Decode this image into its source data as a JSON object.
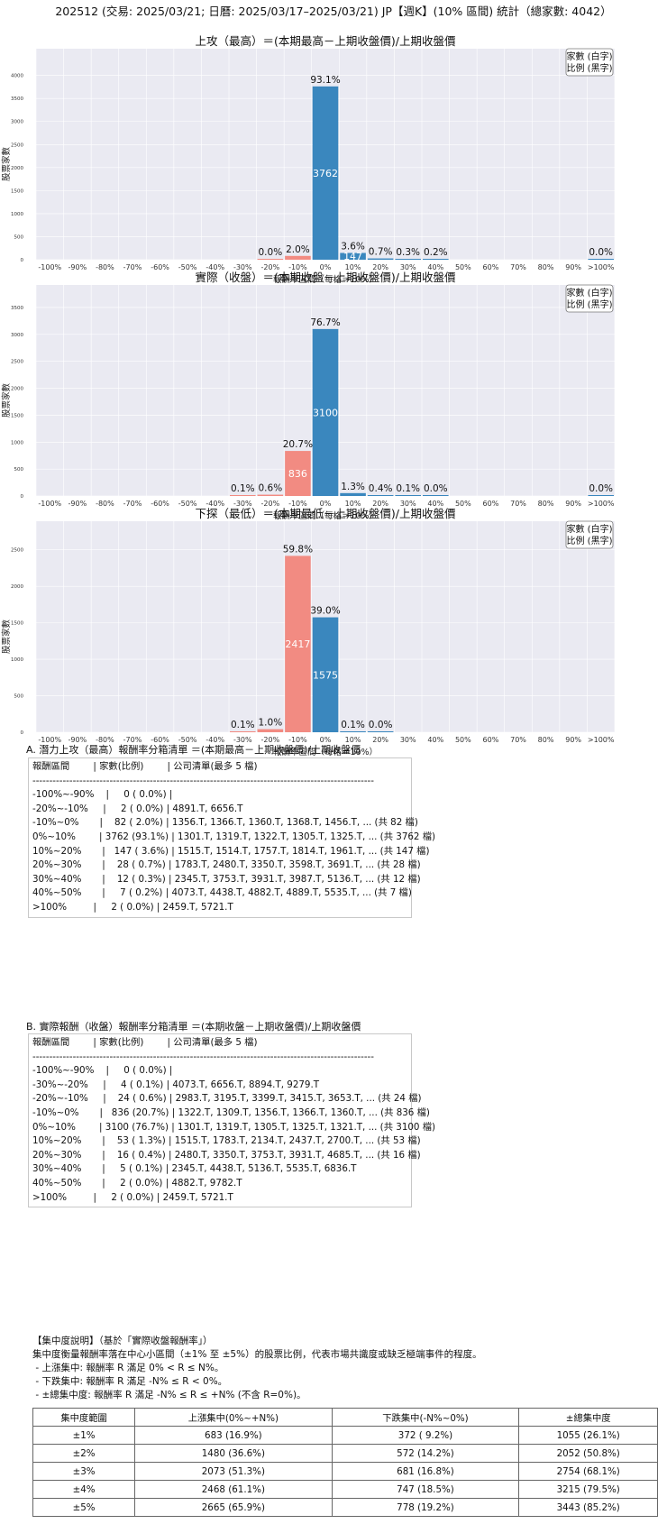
{
  "title": "202512 (交易: 2025/03/21; 日曆: 2025/03/17–2025/03/21) JP【週K】(10% 區間) 統計（總家數: 4042）",
  "legend": [
    "家數 (白字)",
    "比例 (黑字)"
  ],
  "colors": {
    "positive": "#3a87be",
    "negative": "#f28b82",
    "plot_bg": "#eaeaf2"
  },
  "chart_data": [
    {
      "type": "bar",
      "title": "上攻（最高）＝(本期最高－上期收盤價)/上期收盤價",
      "xlabel": "報酬率區間（每格＝10%）",
      "ylabel": "股票家數",
      "categories": [
        "-100%",
        "-90%",
        "-80%",
        "-70%",
        "-60%",
        "-50%",
        "-40%",
        "-30%",
        "-20%",
        "-10%",
        "0%",
        "10%",
        "20%",
        "30%",
        "40%",
        "50%",
        "60%",
        "70%",
        "80%",
        "90%",
        ">100%"
      ],
      "values": [
        0,
        0,
        0,
        0,
        0,
        0,
        0,
        0,
        2,
        82,
        3762,
        147,
        28,
        12,
        7,
        0,
        0,
        0,
        0,
        0,
        2
      ],
      "pct_labels": [
        "",
        "",
        "",
        "",
        "",
        "",
        "",
        "",
        "0.0%",
        "2.0%",
        "93.1%",
        "3.6%",
        "0.7%",
        "0.3%",
        "0.2%",
        "",
        "",
        "",
        "",
        "",
        "0.0%"
      ],
      "count_labels": [
        "",
        "",
        "",
        "",
        "",
        "",
        "",
        "",
        "",
        "",
        "3762",
        "147",
        "",
        "",
        "",
        "",
        "",
        "",
        "",
        "",
        ""
      ],
      "yticks": [
        0,
        500,
        1000,
        1500,
        2000,
        2500,
        3000,
        3500,
        4000
      ],
      "ylim": [
        0,
        4150
      ]
    },
    {
      "type": "bar",
      "title": "實際（收盤）＝(本期收盤－上期收盤價)/上期收盤價",
      "xlabel": "報酬率區間（每格＝10%）",
      "ylabel": "股票家數",
      "categories": [
        "-100%",
        "-90%",
        "-80%",
        "-70%",
        "-60%",
        "-50%",
        "-40%",
        "-30%",
        "-20%",
        "-10%",
        "0%",
        "10%",
        "20%",
        "30%",
        "40%",
        "50%",
        "60%",
        "70%",
        "80%",
        "90%",
        ">100%"
      ],
      "values": [
        0,
        0,
        0,
        0,
        0,
        0,
        0,
        4,
        24,
        836,
        3100,
        53,
        16,
        5,
        2,
        0,
        0,
        0,
        0,
        0,
        2
      ],
      "pct_labels": [
        "",
        "",
        "",
        "",
        "",
        "",
        "",
        "0.1%",
        "0.6%",
        "20.7%",
        "76.7%",
        "1.3%",
        "0.4%",
        "0.1%",
        "0.0%",
        "",
        "",
        "",
        "",
        "",
        "0.0%"
      ],
      "count_labels": [
        "",
        "",
        "",
        "",
        "",
        "",
        "",
        "",
        "",
        "836",
        "3100",
        "",
        "",
        "",
        "",
        "",
        "",
        "",
        "",
        "",
        ""
      ],
      "yticks": [
        0,
        500,
        1000,
        1500,
        2000,
        2500,
        3000,
        3500
      ],
      "ylim": [
        0,
        3550
      ]
    },
    {
      "type": "bar",
      "title": "下探（最低）＝(本期最低－上期收盤價)/上期收盤價",
      "xlabel": "報酬率區間（每格＝10%）",
      "ylabel": "股票家數",
      "categories": [
        "-100%",
        "-90%",
        "-80%",
        "-70%",
        "-60%",
        "-50%",
        "-40%",
        "-30%",
        "-20%",
        "-10%",
        "0%",
        "10%",
        "20%",
        "30%",
        "40%",
        "50%",
        "60%",
        "70%",
        "80%",
        "90%",
        ">100%"
      ],
      "values": [
        0,
        0,
        0,
        0,
        0,
        0,
        0,
        2,
        42,
        2417,
        1575,
        5,
        1,
        0,
        0,
        0,
        0,
        0,
        0,
        0,
        0
      ],
      "pct_labels": [
        "",
        "",
        "",
        "",
        "",
        "",
        "",
        "0.1%",
        "1.0%",
        "59.8%",
        "39.0%",
        "0.1%",
        "0.0%",
        "",
        "",
        "",
        "",
        "",
        "",
        "",
        ""
      ],
      "count_labels": [
        "",
        "",
        "",
        "",
        "",
        "",
        "",
        "",
        "",
        "2417",
        "1575",
        "",
        "",
        "",
        "",
        "",
        "",
        "",
        "",
        "",
        ""
      ],
      "yticks": [
        0,
        500,
        1000,
        1500,
        2000,
        2500
      ],
      "ylim": [
        0,
        2620
      ]
    }
  ],
  "section_a": {
    "title": "A. 潛力上攻（最高）報酬率分箱清單 ＝(本期最高－上期收盤價)/上期收盤價",
    "lines": [
      "報酬區間        | 家數(比例)        | 公司清單(最多 5 檔)",
      "------------------------------------------------------------------------------------------------------",
      "-100%~-90%    |     0 ( 0.0%) |",
      "-20%~-10%     |     2 ( 0.0%) | 4891.T, 6656.T",
      "-10%~0%       |    82 ( 2.0%) | 1356.T, 1366.T, 1360.T, 1368.T, 1456.T, ... (共 82 檔)",
      "0%~10%        | 3762 (93.1%) | 1301.T, 1319.T, 1322.T, 1305.T, 1325.T, ... (共 3762 檔)",
      "10%~20%       |   147 ( 3.6%) | 1515.T, 1514.T, 1757.T, 1814.T, 1961.T, ... (共 147 檔)",
      "20%~30%       |    28 ( 0.7%) | 1783.T, 2480.T, 3350.T, 3598.T, 3691.T, ... (共 28 檔)",
      "30%~40%       |    12 ( 0.3%) | 2345.T, 3753.T, 3931.T, 3987.T, 5136.T, ... (共 12 檔)",
      "40%~50%       |     7 ( 0.2%) | 4073.T, 4438.T, 4882.T, 4889.T, 5535.T, ... (共 7 檔)",
      ">100%         |     2 ( 0.0%) | 2459.T, 5721.T"
    ]
  },
  "section_b": {
    "title": "B. 實際報酬（收盤）報酬率分箱清單 ＝(本期收盤－上期收盤價)/上期收盤價",
    "lines": [
      "報酬區間        | 家數(比例)        | 公司清單(最多 5 檔)",
      "------------------------------------------------------------------------------------------------------",
      "-100%~-90%    |     0 ( 0.0%) |",
      "-30%~-20%     |     4 ( 0.1%) | 4073.T, 6656.T, 8894.T, 9279.T",
      "-20%~-10%     |    24 ( 0.6%) | 2983.T, 3195.T, 3399.T, 3415.T, 3653.T, ... (共 24 檔)",
      "-10%~0%       |   836 (20.7%) | 1322.T, 1309.T, 1356.T, 1366.T, 1360.T, ... (共 836 檔)",
      "0%~10%        | 3100 (76.7%) | 1301.T, 1319.T, 1305.T, 1325.T, 1321.T, ... (共 3100 檔)",
      "10%~20%       |    53 ( 1.3%) | 1515.T, 1783.T, 2134.T, 2437.T, 2700.T, ... (共 53 檔)",
      "20%~30%       |    16 ( 0.4%) | 2480.T, 3350.T, 3753.T, 3931.T, 4685.T, ... (共 16 檔)",
      "30%~40%       |     5 ( 0.1%) | 2345.T, 4438.T, 5136.T, 5535.T, 6836.T",
      "40%~50%       |     2 ( 0.0%) | 4882.T, 9782.T",
      ">100%         |     2 ( 0.0%) | 2459.T, 5721.T"
    ]
  },
  "concentration": {
    "lines": [
      "【集中度說明】（基於「實際收盤報酬率」）",
      "集中度衡量報酬率落在中心小區間（±1% 至 ±5%）的股票比例，代表市場共識度或缺乏極端事件的程度。",
      " - 上漲集中: 報酬率 R 滿足 0% < R ≤ N%。",
      " - 下跌集中: 報酬率 R 滿足 -N% ≤ R < 0%。",
      " - ±總集中度: 報酬率 R 滿足 -N% ≤ R ≤ +N% (不含 R=0%)。"
    ],
    "table": {
      "headers": [
        "集中度範圍",
        "上漲集中(0%~+N%)",
        "下跌集中(-N%~0%)",
        "±總集中度"
      ],
      "rows": [
        [
          "±1%",
          "683 (16.9%)",
          "372 ( 9.2%)",
          "1055 (26.1%)"
        ],
        [
          "±2%",
          "1480 (36.6%)",
          "572 (14.2%)",
          "2052 (50.8%)"
        ],
        [
          "±3%",
          "2073 (51.3%)",
          "681 (16.8%)",
          "2754 (68.1%)"
        ],
        [
          "±4%",
          "2468 (61.1%)",
          "747 (18.5%)",
          "3215 (79.5%)"
        ],
        [
          "±5%",
          "2665 (65.9%)",
          "778 (19.2%)",
          "3443 (85.2%)"
        ]
      ]
    }
  }
}
